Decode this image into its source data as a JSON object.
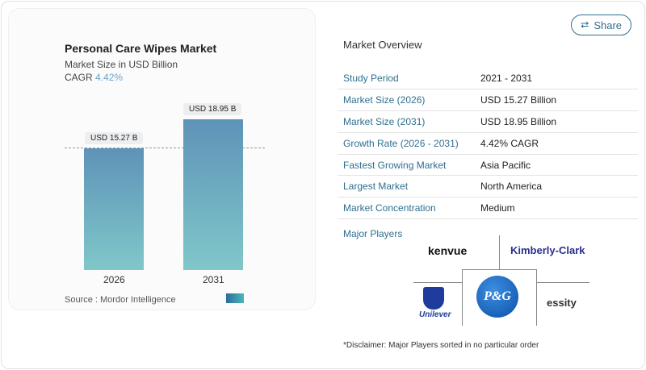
{
  "share": {
    "label": "Share",
    "icon": "share-icon"
  },
  "chart": {
    "title": "Personal Care Wipes Market",
    "subtitle": "Market Size in USD Billion",
    "cagr_label": "CAGR",
    "cagr_value": "4.42%",
    "source": "Source :  Mordor Intelligence"
  },
  "chart_data": {
    "type": "bar",
    "categories": [
      "2026",
      "2031"
    ],
    "values": [
      15.27,
      18.95
    ],
    "data_labels": [
      "USD 15.27 B",
      "USD 18.95 B"
    ],
    "title": "Personal Care Wipes Market",
    "ylabel": "Market Size in USD Billion",
    "colors": [
      "#5e93b8",
      "#80c7c9"
    ]
  },
  "overview": {
    "title": "Market Overview",
    "rows": [
      {
        "k": "Study Period",
        "v": "2021 - 2031"
      },
      {
        "k": "Market Size (2026)",
        "v": "USD 15.27 Billion"
      },
      {
        "k": "Market Size (2031)",
        "v": "USD 18.95 Billion"
      },
      {
        "k": "Growth Rate (2026 - 2031)",
        "v": "4.42% CAGR"
      },
      {
        "k": "Fastest Growing Market",
        "v": "Asia Pacific"
      },
      {
        "k": "Largest Market",
        "v": "North America"
      },
      {
        "k": "Market Concentration",
        "v": "Medium"
      }
    ]
  },
  "players": {
    "title": "Major Players",
    "logos": [
      "kenvue",
      "Kimberly-Clark",
      "P&G",
      "Unilever",
      "essity"
    ]
  },
  "disclaimer": "*Disclaimer: Major Players sorted in no particular order"
}
